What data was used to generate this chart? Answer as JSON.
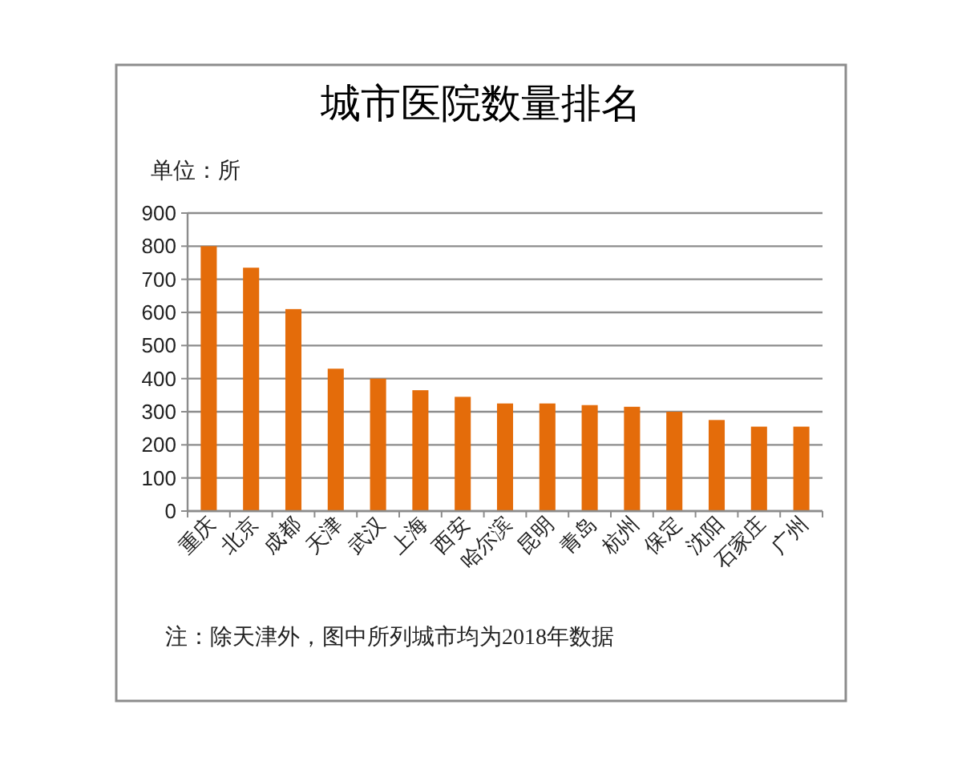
{
  "chart_data": {
    "type": "bar",
    "title": "城市医院数量排名",
    "ylabel": "单位：所",
    "categories": [
      "重庆",
      "北京",
      "成都",
      "天津",
      "武汉",
      "上海",
      "西安",
      "哈尔滨",
      "昆明",
      "青岛",
      "杭州",
      "保定",
      "沈阳",
      "石家庄",
      "广州"
    ],
    "values": [
      800,
      735,
      610,
      430,
      400,
      365,
      345,
      325,
      325,
      320,
      315,
      300,
      275,
      255,
      255
    ],
    "color": "#e46c0a",
    "ylim": [
      0,
      900
    ],
    "yticks": [
      0,
      100,
      200,
      300,
      400,
      500,
      600,
      700,
      800,
      900
    ],
    "grid": "y",
    "annotations": [
      "注：除天津外，图中所列城市均为2018年数据"
    ]
  }
}
